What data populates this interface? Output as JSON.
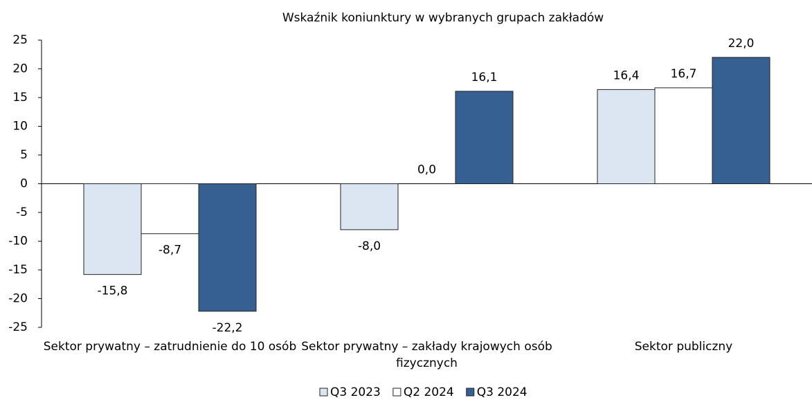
{
  "chart_data": {
    "type": "bar",
    "title": "Wskaźnik koniunktury w wybranych grupach zakładów",
    "categories": [
      "Sektor prywatny – zatrudnienie do 10 osób",
      "Sektor prywatny – zakłady krajowych osób fizycznych",
      "Sektor publiczny"
    ],
    "series": [
      {
        "name": "Q3 2023",
        "color": "#dce6f2",
        "values": [
          -15.8,
          -8.0,
          16.4
        ],
        "value_labels": [
          "-15,8",
          "-8,0",
          "16,4"
        ]
      },
      {
        "name": "Q2 2024",
        "color": "#ffffff",
        "values": [
          -8.7,
          0.0,
          16.7
        ],
        "value_labels": [
          "-8,7",
          "0,0",
          "16,7"
        ]
      },
      {
        "name": "Q3 2024",
        "color": "#376092",
        "values": [
          -22.2,
          16.1,
          22.0
        ],
        "value_labels": [
          "-22,2",
          "16,1",
          "22,0"
        ]
      }
    ],
    "ylim": [
      -25,
      25
    ],
    "yticks": [
      -25,
      -20,
      -15,
      -10,
      -5,
      0,
      5,
      10,
      15,
      20,
      25
    ],
    "grid": false,
    "legend": "bottom"
  }
}
